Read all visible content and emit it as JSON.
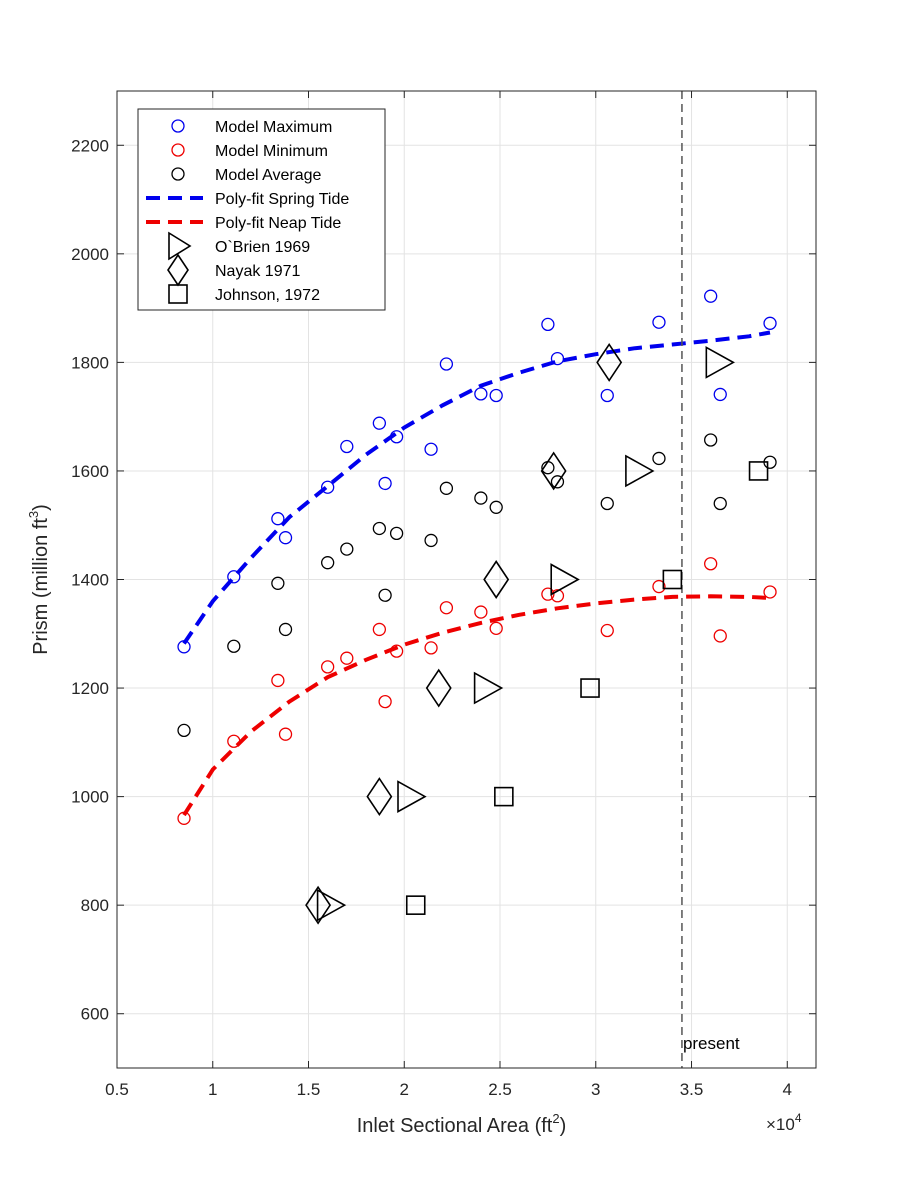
{
  "chart_data": {
    "type": "scatter",
    "title": "",
    "xlabel": "Inlet Sectional Area (ft",
    "xlabel_sup": "2",
    "xlabel_end": ")",
    "ylabel": "Prism (million ft",
    "ylabel_sup": "3",
    "ylabel_end": ")",
    "x_multiplier_base": "×10",
    "x_multiplier_exp": "4",
    "xlim": [
      0.5,
      4.15
    ],
    "ylim": [
      500,
      2300
    ],
    "xticks": [
      0.5,
      1,
      1.5,
      2,
      2.5,
      3,
      3.5,
      4
    ],
    "xtick_labels": [
      "0.5",
      "1",
      "1.5",
      "2",
      "2.5",
      "3",
      "3.5",
      "4"
    ],
    "yticks": [
      600,
      800,
      1000,
      1200,
      1400,
      1600,
      1800,
      2000,
      2200
    ],
    "ytick_labels": [
      "600",
      "800",
      "1000",
      "1200",
      "1400",
      "1600",
      "1800",
      "2000",
      "2200"
    ],
    "grid": true,
    "legend_position": "top-left",
    "colors": {
      "blue": "#0000ee",
      "red": "#ee0000",
      "black": "#000000",
      "present_line": "#555555"
    },
    "series": [
      {
        "name": "Model Maximum",
        "marker": "circle",
        "color": "#0000ee",
        "line": "none",
        "x": [
          0.85,
          1.11,
          1.34,
          1.38,
          1.6,
          1.7,
          1.87,
          1.9,
          1.96,
          2.14,
          2.22,
          2.4,
          2.48,
          2.75,
          2.8,
          3.06,
          3.33,
          3.6,
          3.65,
          3.91
        ],
        "y": [
          1276,
          1405,
          1512,
          1477,
          1570,
          1645,
          1688,
          1577,
          1663,
          1640,
          1797,
          1742,
          1739,
          1870,
          1807,
          1739,
          1874,
          1922,
          1741,
          1872
        ]
      },
      {
        "name": "Model Minimum",
        "marker": "circle",
        "color": "#ee0000",
        "line": "none",
        "x": [
          0.85,
          1.11,
          1.34,
          1.38,
          1.6,
          1.7,
          1.87,
          1.9,
          1.96,
          2.14,
          2.22,
          2.4,
          2.48,
          2.75,
          2.8,
          3.06,
          3.33,
          3.6,
          3.65,
          3.91
        ],
        "y": [
          960,
          1102,
          1214,
          1115,
          1239,
          1255,
          1308,
          1175,
          1268,
          1274,
          1348,
          1340,
          1310,
          1373,
          1370,
          1306,
          1387,
          1429,
          1296,
          1377
        ]
      },
      {
        "name": "Model Average",
        "marker": "circle",
        "color": "#000000",
        "line": "none",
        "x": [
          0.85,
          1.11,
          1.34,
          1.38,
          1.6,
          1.7,
          1.87,
          1.9,
          1.96,
          2.14,
          2.22,
          2.4,
          2.48,
          2.75,
          2.8,
          3.06,
          3.33,
          3.6,
          3.65,
          3.91
        ],
        "y": [
          1122,
          1277,
          1393,
          1308,
          1431,
          1456,
          1494,
          1371,
          1485,
          1472,
          1568,
          1550,
          1533,
          1606,
          1580,
          1540,
          1623,
          1657,
          1540,
          1616
        ]
      },
      {
        "name": "Poly-fit Spring Tide",
        "marker": "none",
        "color": "#0000ee",
        "line": "dashed",
        "x": [
          0.85,
          1.0,
          1.2,
          1.4,
          1.6,
          1.8,
          2.0,
          2.2,
          2.4,
          2.6,
          2.8,
          3.0,
          3.2,
          3.4,
          3.6,
          3.8,
          3.91
        ],
        "y": [
          1282,
          1360,
          1440,
          1515,
          1572,
          1630,
          1680,
          1721,
          1757,
          1781,
          1802,
          1815,
          1826,
          1833,
          1840,
          1848,
          1855
        ]
      },
      {
        "name": "Poly-fit Neap Tide",
        "marker": "none",
        "color": "#ee0000",
        "line": "dashed",
        "x": [
          0.85,
          1.0,
          1.2,
          1.4,
          1.6,
          1.8,
          2.0,
          2.2,
          2.4,
          2.6,
          2.8,
          3.0,
          3.2,
          3.4,
          3.6,
          3.8,
          3.91
        ],
        "y": [
          966,
          1050,
          1120,
          1175,
          1220,
          1252,
          1280,
          1302,
          1320,
          1335,
          1347,
          1356,
          1363,
          1368,
          1369,
          1368,
          1366
        ]
      },
      {
        "name": "O`Brien 1969",
        "marker": "triangle-right",
        "color": "#000000",
        "line": "none",
        "x": [
          1.61,
          2.03,
          2.43,
          2.83,
          3.22,
          3.64
        ],
        "y": [
          800,
          1000,
          1200,
          1400,
          1600,
          1800
        ]
      },
      {
        "name": "Nayak 1971",
        "marker": "diamond",
        "color": "#000000",
        "line": "none",
        "x": [
          1.55,
          1.87,
          2.18,
          2.48,
          2.78,
          3.07
        ],
        "y": [
          800,
          1000,
          1200,
          1400,
          1600,
          1800
        ]
      },
      {
        "name": "Johnson, 1972",
        "marker": "square",
        "color": "#000000",
        "line": "none",
        "x": [
          2.06,
          2.52,
          2.97,
          3.4,
          3.85
        ],
        "y": [
          800,
          1000,
          1200,
          1400,
          1600
        ]
      }
    ],
    "reference_lines": [
      {
        "x": 3.45,
        "style": "dashed",
        "label": "present"
      }
    ]
  }
}
